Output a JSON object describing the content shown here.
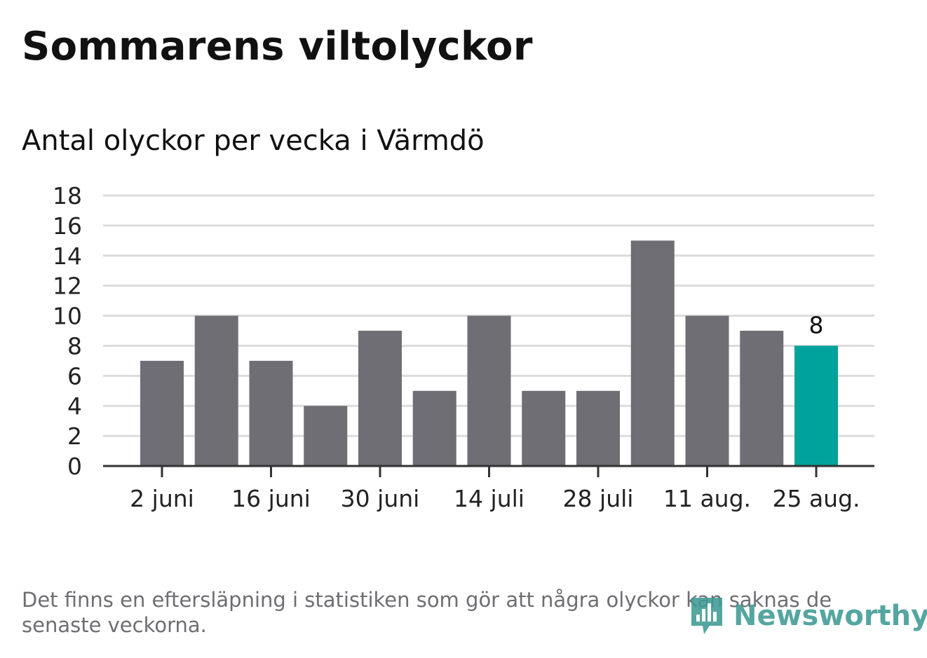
{
  "header": {
    "title": "Sommarens viltolyckor",
    "subtitle": "Antal olyckor per vecka i Värmdö"
  },
  "footer": {
    "note": "Det finns en eftersläpning i statistiken som gör att några olyckor kan saknas de senaste veckorna.",
    "brand": "Newsworthy"
  },
  "colors": {
    "bar": "#6f6e74",
    "highlight": "#00a39b",
    "grid": "#dcdcdc",
    "axis": "#333333",
    "brand": "#3e9a94"
  },
  "chart_data": {
    "type": "bar",
    "categories": [
      "2 juni",
      "",
      "16 juni",
      "",
      "30 juni",
      "",
      "14 juli",
      "",
      "28 juli",
      "",
      "11 aug.",
      "",
      "25 aug."
    ],
    "values": [
      7,
      10,
      7,
      4,
      9,
      5,
      10,
      5,
      5,
      15,
      10,
      9,
      8
    ],
    "highlight_index": 12,
    "highlight_label": "8",
    "ylim": [
      0,
      18
    ],
    "yticks": [
      0,
      2,
      4,
      6,
      8,
      10,
      12,
      14,
      16,
      18
    ],
    "xtick_labels": [
      {
        "index": 0,
        "label": "2 juni"
      },
      {
        "index": 2,
        "label": "16 juni"
      },
      {
        "index": 4,
        "label": "30 juni"
      },
      {
        "index": 6,
        "label": "14 juli"
      },
      {
        "index": 8,
        "label": "28 juli"
      },
      {
        "index": 10,
        "label": "11 aug."
      },
      {
        "index": 12,
        "label": "25 aug."
      }
    ],
    "grid": true,
    "xlabel": "",
    "ylabel": ""
  }
}
